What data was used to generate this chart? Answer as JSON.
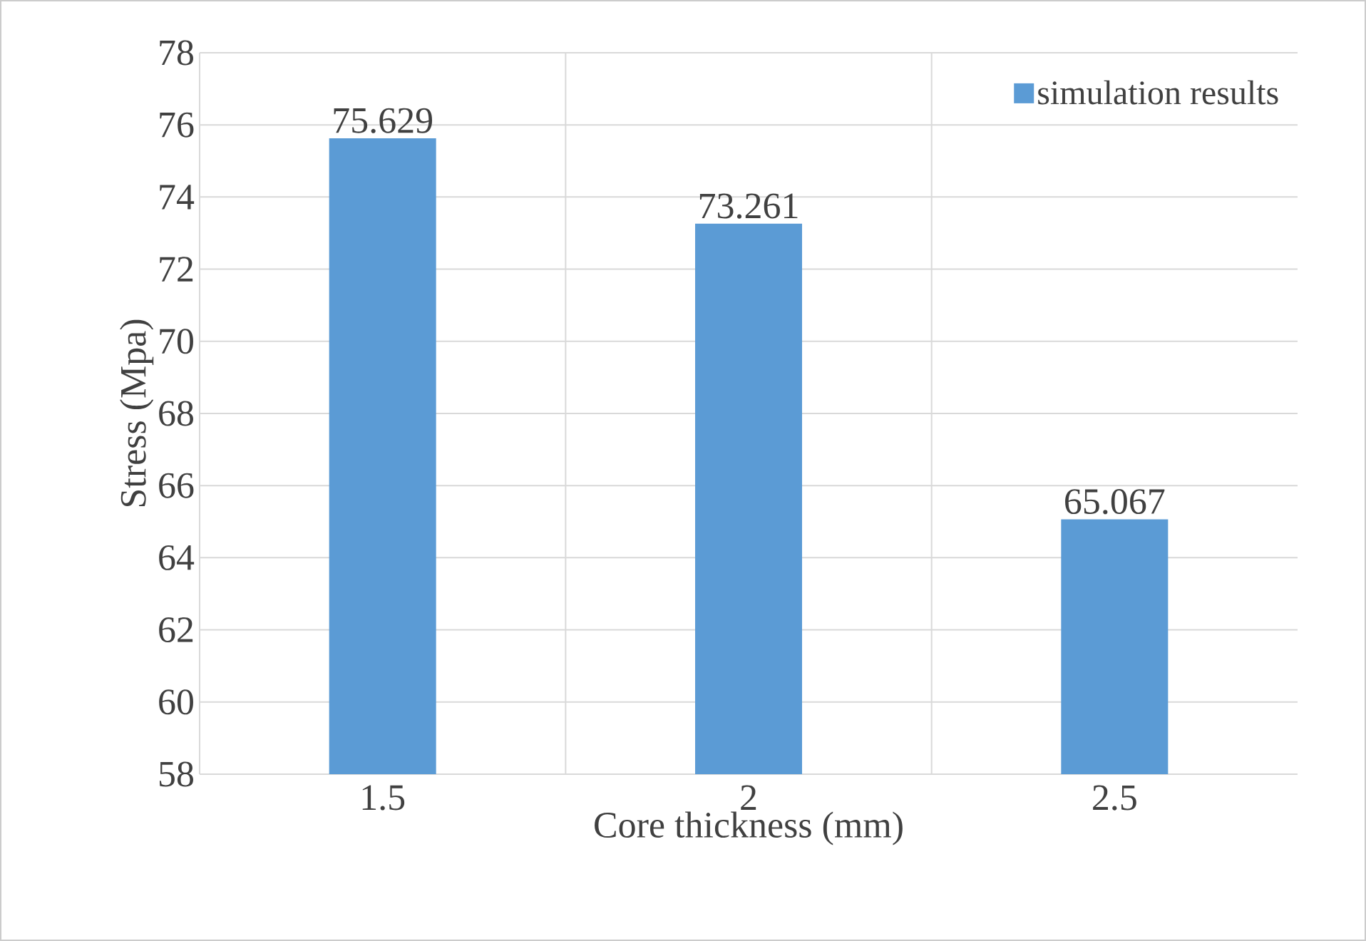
{
  "chart_data": {
    "type": "bar",
    "xlabel": "Core thickness (mm)",
    "ylabel": "Stress (Mpa)",
    "categories": [
      "1.5",
      "2",
      "2.5"
    ],
    "series": [
      {
        "name": "simulation results",
        "color": "#5b9bd5",
        "values": [
          75.629,
          73.261,
          65.067
        ]
      }
    ],
    "ylim": [
      58,
      78
    ],
    "yticks": [
      58,
      60,
      62,
      64,
      66,
      68,
      70,
      72,
      74,
      76,
      78
    ],
    "grid": true,
    "legend": "top right",
    "data_labels": true
  }
}
